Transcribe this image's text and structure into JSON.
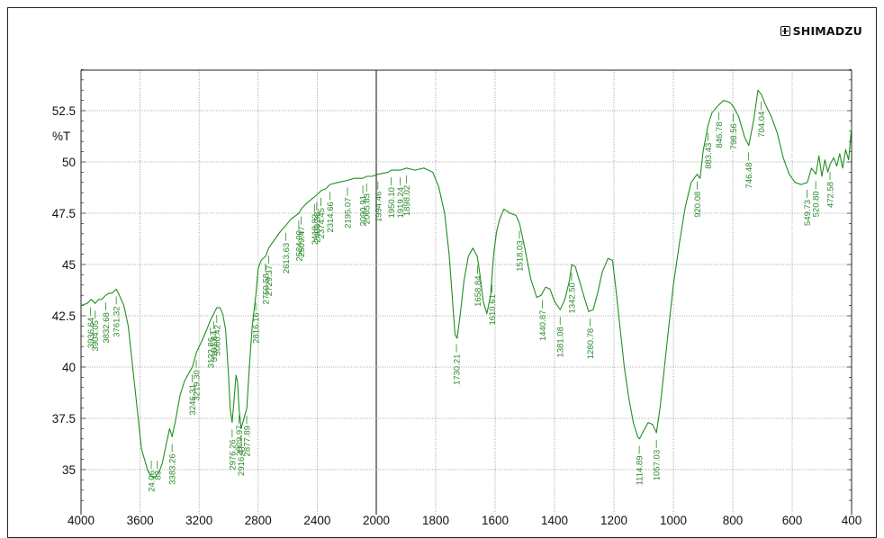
{
  "brand": {
    "name": "SHIMADZU",
    "icon": "shimadzu-logo-icon"
  },
  "colors": {
    "trace": "#1f8f1f",
    "label": "#2a8a2a",
    "grid": "#8a8a8a",
    "axis": "#222222",
    "strong_grid": "#333333"
  },
  "chart_data": {
    "type": "line",
    "title": "",
    "xlabel": "",
    "ylabel": "%T",
    "x_axis": {
      "range": [
        4000,
        400
      ],
      "reversed": true,
      "ticks": [
        4000,
        3600,
        3200,
        2800,
        2400,
        2000,
        1800,
        1600,
        1400,
        1200,
        1000,
        800,
        600,
        400
      ],
      "tick_labels": [
        "4000",
        "3600",
        "3200",
        "2800",
        "2400",
        "2000",
        "1800",
        "1600",
        "1400",
        "1200",
        "1000",
        "800",
        "600",
        "400"
      ]
    },
    "y_axis": {
      "range": [
        33.5,
        54.5
      ],
      "ticks": [
        35,
        37.5,
        40,
        42.5,
        45,
        47.5,
        50,
        52.5
      ],
      "tick_labels": [
        "35",
        "37.5",
        "40",
        "42.5",
        "45",
        "47.5",
        "50",
        "52.5"
      ]
    },
    "grid": true,
    "series": [
      {
        "points": [
          [
            4000,
            43.0
          ],
          [
            3960,
            43.1
          ],
          [
            3930,
            43.3
          ],
          [
            3905,
            43.1
          ],
          [
            3880,
            43.3
          ],
          [
            3860,
            43.3
          ],
          [
            3833,
            43.5
          ],
          [
            3810,
            43.6
          ],
          [
            3790,
            43.6
          ],
          [
            3761,
            43.8
          ],
          [
            3740,
            43.5
          ],
          [
            3710,
            43.0
          ],
          [
            3680,
            42.0
          ],
          [
            3650,
            40.0
          ],
          [
            3620,
            38.0
          ],
          [
            3590,
            36.0
          ],
          [
            3570,
            35.5
          ],
          [
            3550,
            35.0
          ],
          [
            3530,
            34.7
          ],
          [
            3510,
            34.6
          ],
          [
            3490,
            34.7
          ],
          [
            3470,
            34.9
          ],
          [
            3450,
            35.3
          ],
          [
            3430,
            36.0
          ],
          [
            3400,
            37.0
          ],
          [
            3383,
            36.6
          ],
          [
            3360,
            37.4
          ],
          [
            3330,
            38.6
          ],
          [
            3300,
            39.3
          ],
          [
            3270,
            39.7
          ],
          [
            3246,
            40.0
          ],
          [
            3219,
            40.7
          ],
          [
            3180,
            41.3
          ],
          [
            3150,
            41.8
          ],
          [
            3122,
            42.3
          ],
          [
            3101,
            42.6
          ],
          [
            3080,
            42.9
          ],
          [
            3060,
            42.9
          ],
          [
            3040,
            42.6
          ],
          [
            3020,
            41.8
          ],
          [
            3000,
            39.5
          ],
          [
            2990,
            38.0
          ],
          [
            2976,
            37.3
          ],
          [
            2962,
            38.5
          ],
          [
            2950,
            39.6
          ],
          [
            2940,
            39.3
          ],
          [
            2930,
            38.0
          ],
          [
            2920,
            37.3
          ],
          [
            2916,
            37.0
          ],
          [
            2900,
            37.4
          ],
          [
            2877,
            38.0
          ],
          [
            2860,
            40.0
          ],
          [
            2840,
            42.0
          ],
          [
            2816,
            43.5
          ],
          [
            2800,
            44.8
          ],
          [
            2780,
            45.2
          ],
          [
            2750,
            45.4
          ],
          [
            2729,
            45.8
          ],
          [
            2700,
            46.1
          ],
          [
            2650,
            46.6
          ],
          [
            2613,
            46.9
          ],
          [
            2580,
            47.2
          ],
          [
            2524,
            47.5
          ],
          [
            2509,
            47.7
          ],
          [
            2470,
            48.0
          ],
          [
            2418,
            48.3
          ],
          [
            2403,
            48.4
          ],
          [
            2374,
            48.6
          ],
          [
            2340,
            48.7
          ],
          [
            2314,
            48.9
          ],
          [
            2260,
            49.0
          ],
          [
            2195,
            49.1
          ],
          [
            2150,
            49.2
          ],
          [
            2090,
            49.2
          ],
          [
            2065,
            49.3
          ],
          [
            2030,
            49.3
          ],
          [
            1994,
            49.4
          ],
          [
            1960,
            49.5
          ],
          [
            1950,
            49.6
          ],
          [
            1919,
            49.6
          ],
          [
            1898,
            49.7
          ],
          [
            1870,
            49.6
          ],
          [
            1840,
            49.7
          ],
          [
            1810,
            49.5
          ],
          [
            1790,
            48.8
          ],
          [
            1770,
            47.5
          ],
          [
            1755,
            45.5
          ],
          [
            1742,
            43.0
          ],
          [
            1735,
            41.6
          ],
          [
            1728,
            41.4
          ],
          [
            1718,
            42.5
          ],
          [
            1705,
            44.2
          ],
          [
            1690,
            45.4
          ],
          [
            1675,
            45.8
          ],
          [
            1660,
            45.4
          ],
          [
            1650,
            44.4
          ],
          [
            1640,
            43.2
          ],
          [
            1628,
            42.6
          ],
          [
            1615,
            43.5
          ],
          [
            1605,
            45.5
          ],
          [
            1595,
            46.6
          ],
          [
            1585,
            47.2
          ],
          [
            1570,
            47.7
          ],
          [
            1550,
            47.5
          ],
          [
            1530,
            47.4
          ],
          [
            1518,
            47.0
          ],
          [
            1500,
            45.8
          ],
          [
            1480,
            44.3
          ],
          [
            1460,
            43.4
          ],
          [
            1445,
            43.5
          ],
          [
            1430,
            43.9
          ],
          [
            1415,
            43.8
          ],
          [
            1400,
            43.2
          ],
          [
            1381,
            42.8
          ],
          [
            1365,
            43.3
          ],
          [
            1350,
            44.2
          ],
          [
            1342,
            45.0
          ],
          [
            1330,
            44.9
          ],
          [
            1320,
            44.4
          ],
          [
            1300,
            43.4
          ],
          [
            1285,
            42.7
          ],
          [
            1270,
            42.8
          ],
          [
            1255,
            43.6
          ],
          [
            1240,
            44.6
          ],
          [
            1220,
            45.3
          ],
          [
            1205,
            45.2
          ],
          [
            1195,
            44.0
          ],
          [
            1180,
            42.0
          ],
          [
            1165,
            40.0
          ],
          [
            1150,
            38.5
          ],
          [
            1135,
            37.3
          ],
          [
            1120,
            36.6
          ],
          [
            1114,
            36.5
          ],
          [
            1100,
            36.9
          ],
          [
            1085,
            37.3
          ],
          [
            1070,
            37.2
          ],
          [
            1057,
            36.8
          ],
          [
            1045,
            38.0
          ],
          [
            1030,
            40.0
          ],
          [
            1015,
            42.0
          ],
          [
            1000,
            44.0
          ],
          [
            980,
            46.0
          ],
          [
            960,
            47.8
          ],
          [
            940,
            49.0
          ],
          [
            920,
            49.4
          ],
          [
            910,
            49.2
          ],
          [
            900,
            50.5
          ],
          [
            883,
            51.8
          ],
          [
            870,
            52.4
          ],
          [
            846,
            52.8
          ],
          [
            830,
            53.0
          ],
          [
            810,
            52.9
          ],
          [
            798,
            52.7
          ],
          [
            780,
            52.2
          ],
          [
            760,
            51.2
          ],
          [
            746,
            50.8
          ],
          [
            730,
            52.0
          ],
          [
            715,
            53.5
          ],
          [
            704,
            53.3
          ],
          [
            690,
            52.8
          ],
          [
            670,
            52.2
          ],
          [
            650,
            51.4
          ],
          [
            630,
            50.2
          ],
          [
            610,
            49.4
          ],
          [
            590,
            49.0
          ],
          [
            570,
            48.9
          ],
          [
            549,
            49.0
          ],
          [
            535,
            49.7
          ],
          [
            520,
            49.4
          ],
          [
            510,
            50.3
          ],
          [
            500,
            49.3
          ],
          [
            490,
            50.1
          ],
          [
            480,
            49.5
          ],
          [
            472,
            49.9
          ],
          [
            460,
            50.2
          ],
          [
            450,
            49.8
          ],
          [
            440,
            50.4
          ],
          [
            430,
            49.7
          ],
          [
            420,
            50.6
          ],
          [
            410,
            50.1
          ],
          [
            400,
            51.7
          ]
        ]
      }
    ],
    "peaks": [
      {
        "x": 3936.64,
        "label": "3936.64"
      },
      {
        "x": 3904.05,
        "label": "3904.05"
      },
      {
        "x": 3832.68,
        "label": "3832.68"
      },
      {
        "x": 3761.32,
        "label": "3761.32"
      },
      {
        "x": 3524.06,
        "label": "24.06"
      },
      {
        "x": 3483.0,
        "label": "83"
      },
      {
        "x": 3383.26,
        "label": "3383.26"
      },
      {
        "x": 3246.31,
        "label": "3246.31"
      },
      {
        "x": 3219.3,
        "label": "3219.30"
      },
      {
        "x": 3122.86,
        "label": "3122.86"
      },
      {
        "x": 3101.64,
        "label": "3101.64"
      },
      {
        "x": 3080.42,
        "label": "3080.42"
      },
      {
        "x": 2976.26,
        "label": "2976.26"
      },
      {
        "x": 2929.97,
        "label": "2929.97"
      },
      {
        "x": 2916.47,
        "label": "2916.47"
      },
      {
        "x": 2877.89,
        "label": "2877.89"
      },
      {
        "x": 2816.16,
        "label": "2816.16"
      },
      {
        "x": 2750.58,
        "label": "2750.58"
      },
      {
        "x": 2729.37,
        "label": "2729.37"
      },
      {
        "x": 2613.63,
        "label": "2613.63"
      },
      {
        "x": 2524.9,
        "label": "2524.90"
      },
      {
        "x": 2509.47,
        "label": "2509.47"
      },
      {
        "x": 2418.82,
        "label": "2418.82"
      },
      {
        "x": 2403.38,
        "label": "2403.38"
      },
      {
        "x": 2374.45,
        "label": "2374.45"
      },
      {
        "x": 2314.66,
        "label": "2314.66"
      },
      {
        "x": 2195.07,
        "label": "2195.07"
      },
      {
        "x": 2090.91,
        "label": "2090.91"
      },
      {
        "x": 2065.83,
        "label": "2065.83"
      },
      {
        "x": 1994.46,
        "label": "1994.46"
      },
      {
        "x": 1950.1,
        "label": "1950.10"
      },
      {
        "x": 1919.24,
        "label": "1919.24"
      },
      {
        "x": 1898.02,
        "label": "1898.02"
      },
      {
        "x": 1730.21,
        "label": "1730.21"
      },
      {
        "x": 1658.84,
        "label": "1658.84"
      },
      {
        "x": 1610.61,
        "label": "1610.61"
      },
      {
        "x": 1518.03,
        "label": "1518.03"
      },
      {
        "x": 1440.87,
        "label": "1440.87"
      },
      {
        "x": 1381.08,
        "label": "1381.08"
      },
      {
        "x": 1342.5,
        "label": "1342.50"
      },
      {
        "x": 1280.78,
        "label": "1280.78"
      },
      {
        "x": 1114.89,
        "label": "1114.89"
      },
      {
        "x": 1057.03,
        "label": "1057.03"
      },
      {
        "x": 920.08,
        "label": "920.08"
      },
      {
        "x": 883.43,
        "label": "883.43"
      },
      {
        "x": 846.78,
        "label": "846.78"
      },
      {
        "x": 798.56,
        "label": "798.56"
      },
      {
        "x": 746.48,
        "label": "746.48"
      },
      {
        "x": 704.04,
        "label": "704.04"
      },
      {
        "x": 549.73,
        "label": "549.73"
      },
      {
        "x": 520.8,
        "label": "520.80"
      },
      {
        "x": 472.58,
        "label": "472.58"
      }
    ]
  }
}
